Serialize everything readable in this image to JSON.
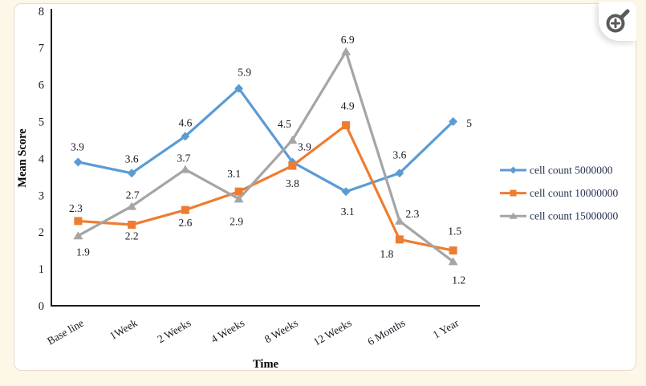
{
  "page": {
    "background_color": "#fcf7e7",
    "card_background": "#ffffff",
    "card_border_color": "#f0d5d0"
  },
  "toolbar": {
    "zoom_button": {
      "icon": "magnifier-plus-icon",
      "icon_color": "#5a5a5a"
    }
  },
  "chart_data": {
    "type": "line",
    "title": "",
    "xlabel": "Time",
    "ylabel": "Mean Score",
    "ylim": [
      0,
      8
    ],
    "ytick_step": 1,
    "yticks": [
      "0",
      "1",
      "2",
      "3",
      "4",
      "5",
      "6",
      "7",
      "8"
    ],
    "grid": false,
    "legend_position": "right",
    "axis_color": "#1a1a1a",
    "tick_text_color": "#181822",
    "label_text_color": "#181822",
    "legend_text_color": "#253252",
    "categories": [
      "Base line",
      "1Week",
      "2 Weeks",
      "4 Weeks",
      "8 Weeks",
      "12 Weeks",
      "6 Months",
      "1 Year"
    ],
    "series": [
      {
        "name": "cell count 5000000",
        "color": "#5B9BD5",
        "marker": "diamond",
        "values": [
          3.9,
          3.6,
          4.6,
          5.9,
          3.9,
          3.1,
          3.6,
          5
        ],
        "labels": [
          "3.9",
          "3.6",
          "4.6",
          "5.9",
          "3.9",
          "3.1",
          "3.6",
          "5"
        ],
        "label_offsets": [
          [
            -1,
            -19
          ],
          [
            0,
            -18
          ],
          [
            0,
            -17
          ],
          [
            7,
            -20
          ],
          [
            15,
            -19
          ],
          [
            2,
            25
          ],
          [
            0,
            -23
          ],
          [
            20,
            2
          ]
        ]
      },
      {
        "name": "cell count 10000000",
        "color": "#ED7D31",
        "marker": "square",
        "values": [
          2.3,
          2.2,
          2.6,
          3.1,
          3.8,
          4.9,
          1.8,
          1.5
        ],
        "labels": [
          "2.3",
          "2.2",
          "2.6",
          "3.1",
          "3.8",
          "4.9",
          "1.8",
          "1.5"
        ],
        "label_offsets": [
          [
            -3,
            -16
          ],
          [
            0,
            14
          ],
          [
            0,
            16
          ],
          [
            -6,
            -22
          ],
          [
            0,
            22
          ],
          [
            2,
            -24
          ],
          [
            -16,
            18
          ],
          [
            2,
            -24
          ]
        ]
      },
      {
        "name": "cell count 15000000",
        "color": "#A5A5A5",
        "marker": "triangle",
        "values": [
          1.9,
          2.7,
          3.7,
          2.9,
          4.5,
          6.9,
          2.3,
          1.2
        ],
        "labels": [
          "1.9",
          "2.7",
          "3.7",
          "2.9",
          "4.5",
          "6.9",
          "2.3",
          "1.2"
        ],
        "label_offsets": [
          [
            6,
            20
          ],
          [
            1,
            -14
          ],
          [
            -2,
            -14
          ],
          [
            -3,
            28
          ],
          [
            -10,
            -20
          ],
          [
            2,
            -15
          ],
          [
            16,
            -9
          ],
          [
            7,
            23
          ]
        ]
      }
    ]
  }
}
